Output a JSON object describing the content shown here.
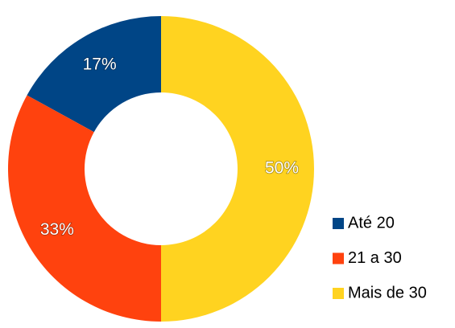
{
  "chart_data": {
    "type": "donut",
    "categories": [
      "Até 20",
      "21 a 30",
      "Mais de 30"
    ],
    "values": [
      17,
      33,
      50
    ],
    "value_labels": [
      "17%",
      "33%",
      "50%"
    ],
    "colors": [
      "#004586",
      "#ff420e",
      "#ffd320"
    ],
    "legend": "right"
  }
}
